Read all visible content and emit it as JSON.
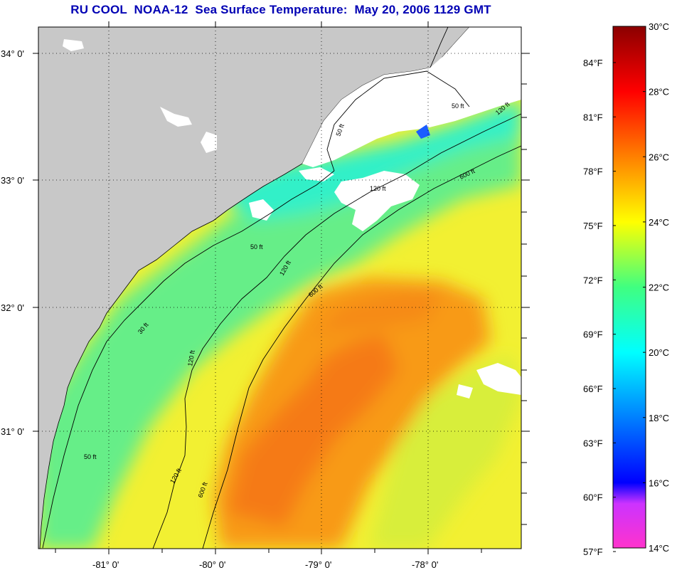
{
  "title": "RU COOL  NOAA-12  Sea Surface Temperature:  May 20, 2006 1129 GMT",
  "map": {
    "lat_labels": [
      "34° 0'",
      "33° 0'",
      "32° 0'",
      "31° 0'"
    ],
    "lon_labels": [
      "-81° 0'",
      "-80° 0'",
      "-79° 0'",
      "-78° 0'"
    ],
    "contour_labels": {
      "c50_a": "50 ft",
      "c50_b": "50 ft",
      "c50_c": "50 ft",
      "c50_d": "50 ft",
      "c30": "30 ft",
      "c120_a": "120 ft",
      "c120_b": "120 ft",
      "c120_c": "120 ft",
      "c120_d": "120 ft",
      "c120_e": "120 ft",
      "c600_a": "600 ft",
      "c600_b": "600 ft",
      "c600_c": "600 ft"
    }
  },
  "colorbar": {
    "fahrenheit_labels": [
      "84°F",
      "81°F",
      "78°F",
      "75°F",
      "72°F",
      "69°F",
      "66°F",
      "63°F",
      "60°F",
      "57°F"
    ],
    "celsius_labels": [
      "30°C",
      "28°C",
      "26°C",
      "24°C",
      "22°C",
      "20°C",
      "18°C",
      "16°C",
      "14°C"
    ],
    "celsius_range": [
      14,
      30
    ]
  },
  "colors": {
    "land": "#c8c8c8",
    "cloud": "#ffffff",
    "title": "#0000b4"
  }
}
